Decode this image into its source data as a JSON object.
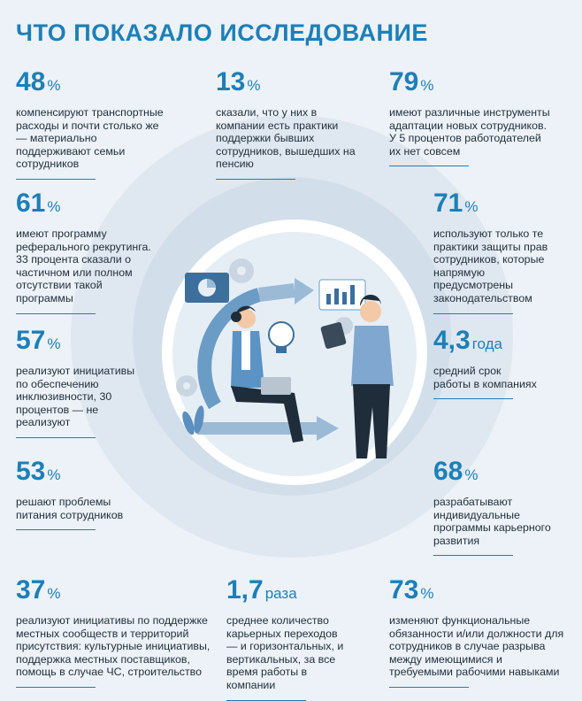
{
  "title": "ЧТО ПОКАЗАЛО ИССЛЕДОВАНИЕ",
  "accent_color": "#1d7fb8",
  "stats": [
    {
      "value": "48",
      "unit": "%",
      "text": "компенсируют транспортные расходы и почти столько же — материально поддерживают семьи сотрудников"
    },
    {
      "value": "13",
      "unit": "%",
      "text": "сказали, что у них в компании есть практики поддержки бывших сотрудников, вышедших на пенсию"
    },
    {
      "value": "79",
      "unit": "%",
      "text": "имеют различные инструменты адаптации новых сотрудников. У 5 процентов работодателей их нет совсем"
    },
    {
      "value": "61",
      "unit": "%",
      "text": "имеют программу реферального рекрутинга. 33 процента сказали о частичном или полном отсутствии такой программы"
    },
    {
      "value": "71",
      "unit": "%",
      "text": "используют только те практики защиты прав сотрудников, которые напрямую предусмотрены законодательством"
    },
    {
      "value": "57",
      "unit": "%",
      "text": "реализуют инициативы по обеспечению инклюзивности, 30 процентов — не реализуют"
    },
    {
      "value": "4,3",
      "unit": "года",
      "text": "средний срок работы в компаниях"
    },
    {
      "value": "53",
      "unit": "%",
      "text": "решают проблемы питания сотрудников"
    },
    {
      "value": "68",
      "unit": "%",
      "text": "разрабатывают индивидуальные программы карьерного развития"
    },
    {
      "value": "37",
      "unit": "%",
      "text": "реализуют инициативы по поддержке местных сообществ и территорий присутствия: культурные инициативы, поддержка местных поставщиков, помощь в случае ЧС, строительство"
    },
    {
      "value": "1,7",
      "unit": "раза",
      "text": "среднее количество карьерных переходов — и горизонтальных, и вертикальных, за все время работы в компании"
    },
    {
      "value": "73",
      "unit": "%",
      "text": "изменяют функциональные обязанности и/или должности для сотрудников в случае разрыва между имеющимися и требуемыми рабочими навыками"
    }
  ]
}
